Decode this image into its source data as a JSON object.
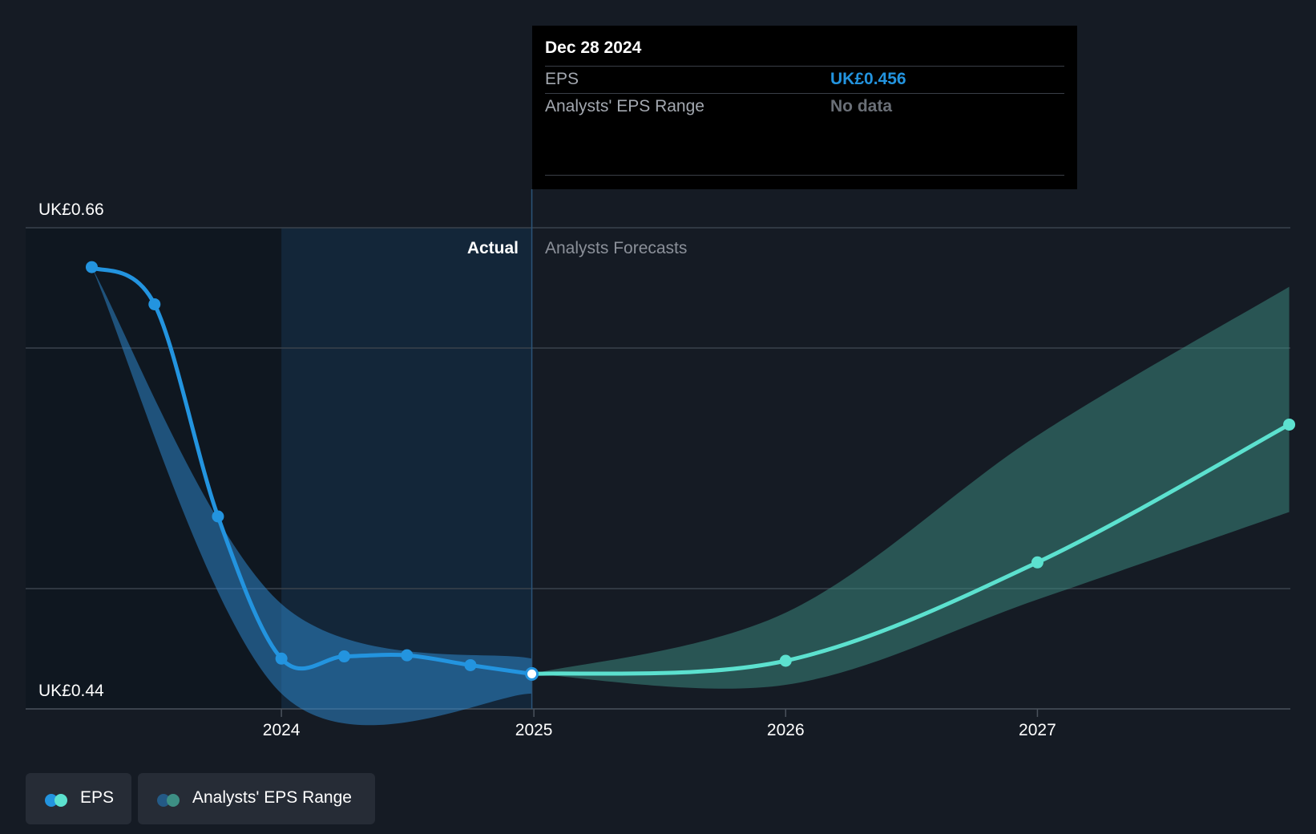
{
  "tooltip": {
    "date": "Dec 28 2024",
    "eps_label": "EPS",
    "eps_value": "UK£0.456",
    "range_label": "Analysts' EPS Range",
    "range_value": "No data"
  },
  "labels": {
    "actual": "Actual",
    "forecast": "Analysts Forecasts"
  },
  "legend": {
    "eps": "EPS",
    "range": "Analysts' EPS Range"
  },
  "colors": {
    "actual": "#2394df",
    "forecast": "#5ce1cf",
    "range_actual": "#2f8ed6",
    "range_forecast": "#3d8f84",
    "background": "#151b24"
  },
  "chart_data": {
    "type": "line",
    "y_ticks": [
      "UK£0.66",
      "UK£0.44"
    ],
    "ylim": [
      0.44,
      0.66
    ],
    "x_ticks": [
      "2024",
      "2025",
      "2026",
      "2027"
    ],
    "series": [
      {
        "name": "EPS",
        "segment": "actual",
        "x": [
          "2023-03-31",
          "2023-06-30",
          "2023-09-30",
          "2023-12-31",
          "2024-03-31",
          "2024-06-30",
          "2024-09-30",
          "2024-12-28"
        ],
        "values": [
          0.642,
          0.625,
          0.528,
          0.463,
          0.464,
          0.4645,
          0.46,
          0.456
        ]
      },
      {
        "name": "EPS",
        "segment": "forecast",
        "x": [
          "2024-12-28",
          "2025-12-31",
          "2026-12-31",
          "2027-12-31"
        ],
        "values": [
          0.456,
          0.462,
          0.507,
          0.57
        ]
      }
    ],
    "range": {
      "name": "Analysts' EPS Range",
      "actual": {
        "x": [
          "2023-03-31",
          "2023-12-31",
          "2024-12-28"
        ],
        "low": [
          0.642,
          0.447,
          0.447
        ],
        "high": [
          0.642,
          0.488,
          0.463
        ]
      },
      "forecast": {
        "x": [
          "2024-12-28",
          "2025-12-31",
          "2026-12-31",
          "2027-12-31"
        ],
        "low": [
          0.456,
          0.451,
          0.49,
          0.53
        ],
        "high": [
          0.456,
          0.484,
          0.565,
          0.633
        ]
      }
    }
  }
}
